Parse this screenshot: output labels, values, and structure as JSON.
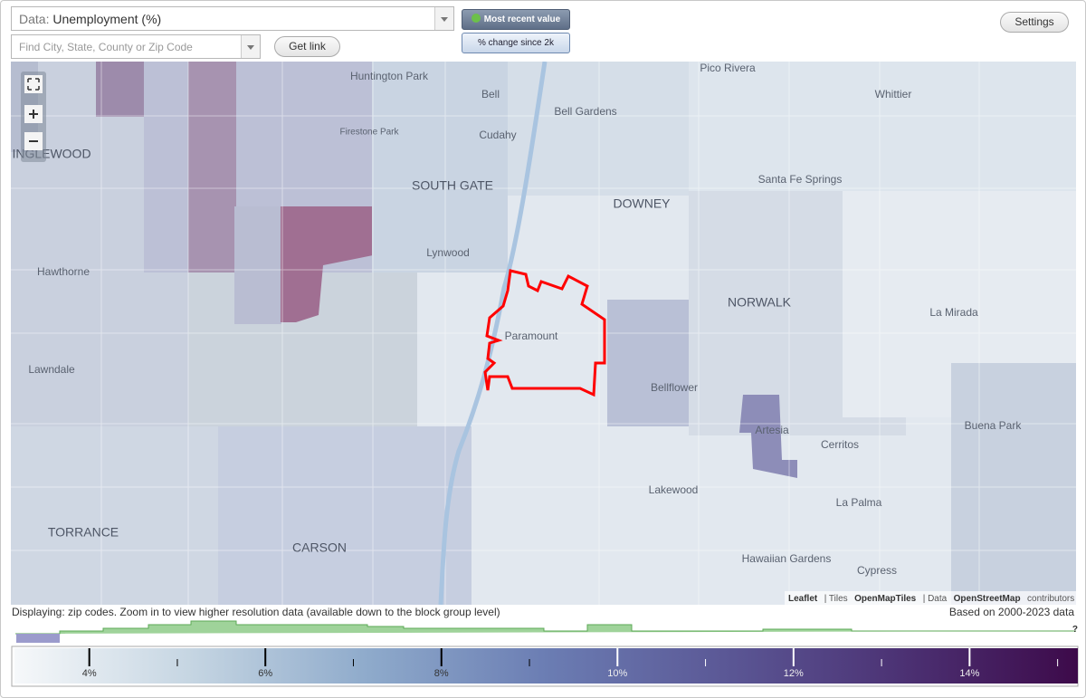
{
  "controls": {
    "data_label": "Data:",
    "data_value": "Unemployment (%)",
    "search_placeholder": "Find City, State, County or Zip Code",
    "get_link": "Get link",
    "mode_buttons": [
      "Most recent value",
      "% change since 2k"
    ],
    "settings": "Settings"
  },
  "map": {
    "places": [
      "Huntington Park",
      "Pico Rivera",
      "Whittier",
      "Bell",
      "Bell Gardens",
      "Firestone Park",
      "Cudahy",
      "INGLEWOOD",
      "SOUTH GATE",
      "DOWNEY",
      "Santa Fe Springs",
      "Lynwood",
      "Hawthorne",
      "NORWALK",
      "La Mirada",
      "Paramount",
      "Lawndale",
      "Bellflower",
      "Artesia",
      "Buena Park",
      "Cerritos",
      "Lakewood",
      "La Palma",
      "TORRANCE",
      "CARSON",
      "Hawaiian Gardens",
      "Cypress"
    ],
    "attribution": [
      "Leaflet",
      "| Tiles",
      "OpenMapTiles",
      "| Data",
      "OpenStreetMap",
      "contributors"
    ]
  },
  "footer": {
    "displaying": "Displaying: zip codes. Zoom in to view higher resolution data (available down to the block group level)",
    "based_on": "Based on 2000-2023 data",
    "help": "?"
  },
  "legend": {
    "range": [
      3.15,
      15.23
    ],
    "colors": [
      "#f6f8fa",
      "#c5d5e2",
      "#8eaacb",
      "#6b7db3",
      "#5b5896",
      "#4c3274",
      "#3d0a4a"
    ],
    "ticks": [
      {
        "value": 4,
        "label": "4%"
      },
      {
        "value": 6,
        "label": "6%"
      },
      {
        "value": 8,
        "label": "8%"
      },
      {
        "value": 10,
        "label": "10%"
      },
      {
        "value": 12,
        "label": "12%"
      },
      {
        "value": 14,
        "label": "14%"
      }
    ],
    "minor_ticks": [
      5,
      7,
      9,
      11,
      13,
      15
    ]
  }
}
